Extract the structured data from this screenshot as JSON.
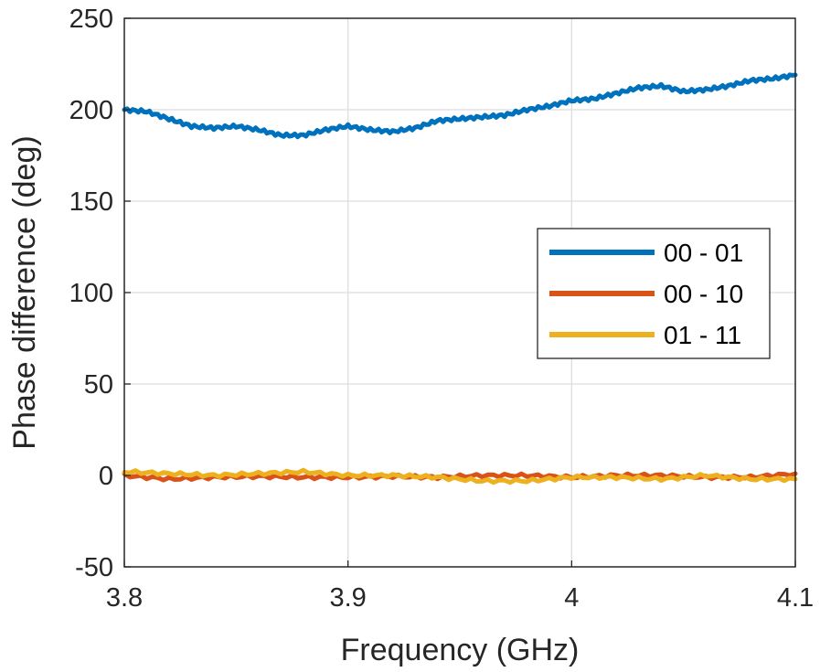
{
  "chart_data": {
    "type": "line",
    "title": "",
    "xlabel": "Frequency (GHz)",
    "ylabel": "Phase difference (deg)",
    "xlim": [
      3.8,
      4.1
    ],
    "ylim": [
      -50,
      250
    ],
    "xticks": [
      3.8,
      3.9,
      4.0,
      4.1
    ],
    "xtick_labels": [
      "3.8",
      "3.9",
      "4",
      "4.1"
    ],
    "yticks": [
      -50,
      0,
      50,
      100,
      150,
      200,
      250
    ],
    "ytick_labels": [
      "-50",
      "0",
      "50",
      "100",
      "150",
      "200",
      "250"
    ],
    "grid": true,
    "legend_position": "right",
    "series": [
      {
        "name": "00 - 01",
        "color": "#0072BD",
        "x": [
          3.8,
          3.81,
          3.82,
          3.83,
          3.84,
          3.85,
          3.86,
          3.87,
          3.88,
          3.89,
          3.9,
          3.91,
          3.92,
          3.93,
          3.94,
          3.95,
          3.96,
          3.97,
          3.98,
          3.99,
          4.0,
          4.01,
          4.02,
          4.03,
          4.04,
          4.05,
          4.06,
          4.07,
          4.08,
          4.09,
          4.1
        ],
        "y": [
          200,
          199,
          195,
          191,
          190,
          191,
          189,
          186,
          186,
          189,
          191,
          189,
          188,
          190,
          194,
          195,
          196,
          197,
          200,
          202,
          205,
          206,
          209,
          212,
          213,
          210,
          211,
          213,
          216,
          217,
          219
        ]
      },
      {
        "name": "00 - 10",
        "color": "#D95319",
        "x": [
          3.8,
          3.82,
          3.84,
          3.86,
          3.88,
          3.9,
          3.92,
          3.94,
          3.96,
          3.98,
          4.0,
          4.02,
          4.04,
          4.06,
          4.08,
          4.1
        ],
        "y": [
          0,
          -2,
          -1,
          -0.5,
          -1,
          -1,
          -0.5,
          -1,
          0,
          0,
          -1,
          0,
          0,
          -1,
          -1,
          1
        ]
      },
      {
        "name": "01 - 11",
        "color": "#EDB120",
        "x": [
          3.8,
          3.82,
          3.84,
          3.86,
          3.88,
          3.9,
          3.92,
          3.94,
          3.96,
          3.98,
          4.0,
          4.02,
          4.04,
          4.06,
          4.08,
          4.1
        ],
        "y": [
          2,
          1,
          0,
          1,
          2,
          0,
          0,
          -1,
          -3,
          -3,
          -1,
          -1,
          -2,
          0,
          -2,
          -2
        ]
      }
    ]
  }
}
